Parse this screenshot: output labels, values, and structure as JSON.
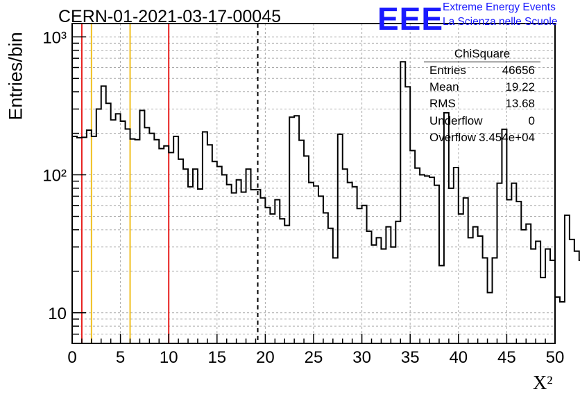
{
  "header": {
    "title": "CERN-01-2021-03-17-00045",
    "logo_text": "EEE",
    "logo_line1": "Extreme Energy Events",
    "logo_line2": "La Scienza nelle Scuole"
  },
  "stats_box": {
    "title": "ChiSquare",
    "rows": [
      {
        "key": "Entries",
        "value": "46656"
      },
      {
        "key": "Mean",
        "value": "19.22"
      },
      {
        "key": "RMS",
        "value": "13.68"
      },
      {
        "key": "Underflow",
        "value": "0"
      },
      {
        "key": "Overflow",
        "value": "3.454e+04"
      }
    ]
  },
  "colors": {
    "histogram": "#000000",
    "red_lines": "#e8201e",
    "yellow_lines": "#f0c020",
    "grid": "#aaaaaa",
    "logo": "#1a1aff"
  },
  "chart_data": {
    "type": "histogram",
    "title": "CERN-01-2021-03-17-00045",
    "xlabel": "X²",
    "ylabel": "Entries/bin",
    "xlim": [
      0,
      50
    ],
    "ylim": [
      6,
      1250
    ],
    "ylog": true,
    "grid": true,
    "bin_width": 0.5,
    "x_ticks": [
      "0",
      "5",
      "10",
      "15",
      "20",
      "25",
      "30",
      "35",
      "40",
      "45",
      "50"
    ],
    "x_tick_values": [
      0,
      5,
      10,
      15,
      20,
      25,
      30,
      35,
      40,
      45,
      50
    ],
    "y_ticks": [
      "10",
      "10²",
      "10³"
    ],
    "y_tick_values": [
      10,
      100,
      1000
    ],
    "values": [
      190,
      186,
      187,
      211,
      190,
      300,
      440,
      330,
      250,
      277,
      245,
      215,
      182,
      180,
      293,
      220,
      200,
      180,
      155,
      162,
      145,
      190,
      130,
      110,
      82,
      110,
      79,
      205,
      165,
      125,
      115,
      100,
      85,
      74,
      92,
      75,
      110,
      78,
      78,
      68,
      58,
      52,
      66,
      48,
      43,
      262,
      268,
      178,
      137,
      88,
      83,
      70,
      53,
      41,
      25,
      197,
      110,
      88,
      82,
      57,
      60,
      39,
      31,
      35,
      29,
      42,
      30,
      46,
      660,
      435,
      150,
      112,
      100,
      98,
      96,
      84,
      22,
      282,
      80,
      113,
      52,
      68,
      35,
      42,
      36,
      25,
      14,
      25,
      87,
      214,
      66,
      87,
      64,
      40,
      44,
      29,
      33,
      18,
      29,
      24,
      13,
      12,
      51,
      34,
      28,
      24
    ],
    "vertical_lines": [
      {
        "x": 1,
        "style": "solid",
        "color": "red"
      },
      {
        "x": 2,
        "style": "solid",
        "color": "yellow"
      },
      {
        "x": 6,
        "style": "solid",
        "color": "yellow"
      },
      {
        "x": 10,
        "style": "solid",
        "color": "red"
      },
      {
        "x": 19.22,
        "style": "dashed",
        "color": "black"
      }
    ]
  }
}
